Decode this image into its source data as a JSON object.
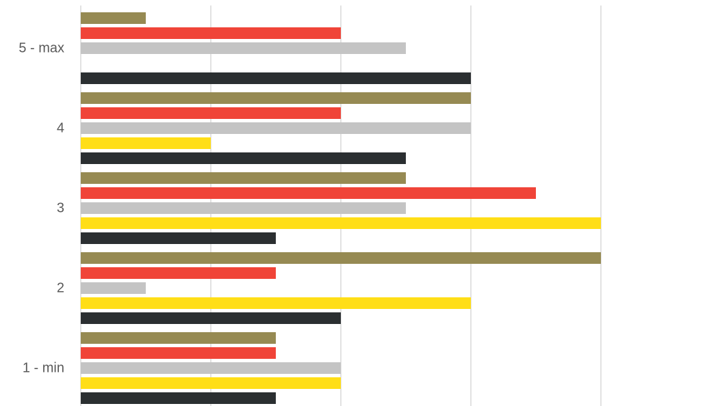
{
  "chart_data": {
    "type": "bar",
    "orientation": "horizontal",
    "categories": [
      "1 - min",
      "2",
      "3",
      "4",
      "5 - max"
    ],
    "category_order": "bottom-to-top",
    "xlim": [
      0,
      9.5
    ],
    "x_gridlines": [
      0,
      2,
      4,
      6,
      8
    ],
    "x_tick_labels_visible": false,
    "grid": true,
    "legend": "none",
    "title": "",
    "xlabel": "",
    "ylabel": "",
    "series": [
      {
        "values": [
          3,
          8,
          5,
          6,
          1
        ],
        "color": "#968a53"
      },
      {
        "values": [
          3,
          3,
          7,
          4,
          4
        ],
        "color": "#f04438"
      },
      {
        "values": [
          4,
          1,
          5,
          6,
          5
        ],
        "color": "#c4c4c4"
      },
      {
        "values": [
          4,
          6,
          8,
          2,
          0
        ],
        "color": "#ffde17"
      },
      {
        "values": [
          3,
          4,
          3,
          5,
          6
        ],
        "color": "#2b2f31"
      }
    ]
  }
}
